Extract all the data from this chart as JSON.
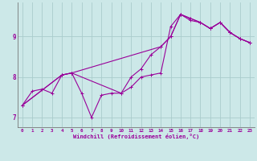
{
  "title": "",
  "xlabel": "Windchill (Refroidissement éolien,°C)",
  "background_color": "#cce8e8",
  "grid_color": "#aacccc",
  "line_color": "#990099",
  "xlim": [
    -0.5,
    23.5
  ],
  "ylim": [
    6.75,
    9.85
  ],
  "yticks": [
    7,
    8,
    9
  ],
  "xticks": [
    0,
    1,
    2,
    3,
    4,
    5,
    6,
    7,
    8,
    9,
    10,
    11,
    12,
    13,
    14,
    15,
    16,
    17,
    18,
    19,
    20,
    21,
    22,
    23
  ],
  "series1_x": [
    0,
    1,
    2,
    3,
    4,
    5,
    6,
    7,
    8,
    9,
    10,
    11,
    12,
    13,
    14,
    15,
    16,
    17,
    18,
    19,
    20,
    21,
    22,
    23
  ],
  "series1_y": [
    7.3,
    7.65,
    7.7,
    7.6,
    8.05,
    8.1,
    7.6,
    7.0,
    7.55,
    7.6,
    7.6,
    7.75,
    8.0,
    8.05,
    8.1,
    9.25,
    9.55,
    9.4,
    9.35,
    9.2,
    9.35,
    9.1,
    8.95,
    8.85
  ],
  "series2_x": [
    0,
    4,
    5,
    10,
    11,
    12,
    13,
    14,
    15,
    16,
    17,
    18,
    19,
    20,
    21,
    22,
    23
  ],
  "series2_y": [
    7.3,
    8.05,
    8.1,
    7.6,
    8.0,
    8.2,
    8.55,
    8.75,
    9.0,
    9.55,
    9.45,
    9.35,
    9.2,
    9.35,
    9.1,
    8.95,
    8.85
  ],
  "series3_x": [
    0,
    4,
    5,
    14,
    15,
    16,
    17,
    18,
    19,
    20,
    21,
    22,
    23
  ],
  "series3_y": [
    7.3,
    8.05,
    8.1,
    8.75,
    9.0,
    9.55,
    9.45,
    9.35,
    9.2,
    9.35,
    9.1,
    8.95,
    8.85
  ]
}
